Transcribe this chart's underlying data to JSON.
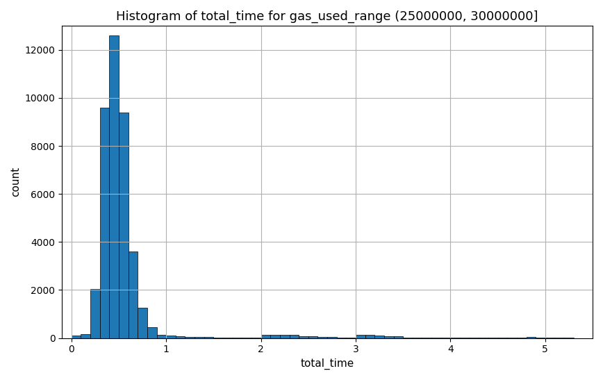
{
  "title": "Histogram of total_time for gas_used_range (25000000, 30000000]",
  "xlabel": "total_time",
  "ylabel": "count",
  "xlim": [
    -0.1,
    5.5
  ],
  "ylim": [
    0,
    13000
  ],
  "bar_color": "#1f77b4",
  "bar_edge_color": "#000000",
  "bin_edges": [
    0.0,
    0.1,
    0.2,
    0.3,
    0.4,
    0.5,
    0.6,
    0.7,
    0.8,
    0.9,
    1.0,
    1.1,
    1.2,
    1.3,
    1.4,
    1.5,
    1.6,
    1.7,
    1.8,
    1.9,
    2.0,
    2.1,
    2.2,
    2.3,
    2.4,
    2.5,
    2.6,
    2.7,
    2.8,
    2.9,
    3.0,
    3.1,
    3.2,
    3.3,
    3.4,
    3.5,
    3.6,
    3.7,
    3.8,
    3.9,
    4.0,
    4.1,
    4.2,
    4.3,
    4.4,
    4.5,
    4.6,
    4.7,
    4.8,
    4.9,
    5.0,
    5.1,
    5.2,
    5.3,
    5.4,
    5.5
  ],
  "counts": [
    100,
    150,
    2050,
    9600,
    12600,
    9400,
    3600,
    1250,
    450,
    130,
    90,
    60,
    50,
    40,
    30,
    25,
    20,
    20,
    15,
    15,
    120,
    130,
    130,
    120,
    80,
    60,
    40,
    30,
    25,
    20,
    130,
    120,
    100,
    80,
    60,
    20,
    15,
    10,
    10,
    8,
    5,
    4,
    4,
    3,
    3,
    2,
    2,
    2,
    45,
    2,
    1,
    1,
    1,
    0,
    0
  ],
  "grid_color": "#b0b0b0",
  "background_color": "#ffffff",
  "xticks": [
    0,
    1,
    2,
    3,
    4,
    5
  ],
  "yticks": [
    0,
    2000,
    4000,
    6000,
    8000,
    10000,
    12000
  ],
  "title_fontsize": 13,
  "label_fontsize": 11
}
